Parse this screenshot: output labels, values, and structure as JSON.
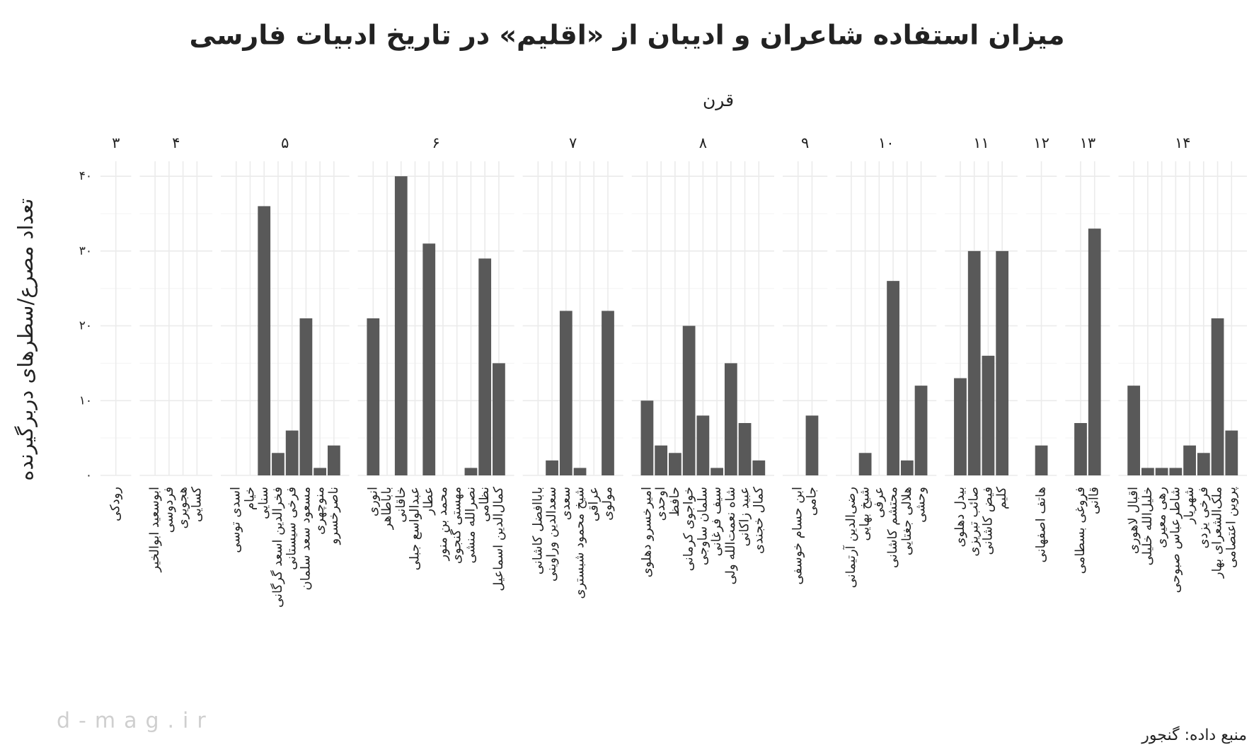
{
  "chart_data": {
    "type": "bar",
    "title": "میزان استفاده شاعران و ادیبان از «اقلیم» در تاریخ ادبیات فارسی",
    "x_label": "قرن",
    "y_label": "تعداد مصرع/سطرهای دربرگیرنده",
    "caption": "منبع داده: گنجور",
    "watermark": "d-mag.ir",
    "color": "#595959",
    "grid": true,
    "ylim": [
      0,
      42
    ],
    "yticks": [
      {
        "value": 0,
        "label": "۰"
      },
      {
        "value": 10,
        "label": "۱۰"
      },
      {
        "value": 20,
        "label": "۲۰"
      },
      {
        "value": 30,
        "label": "۳۰"
      },
      {
        "value": 40,
        "label": "۴۰"
      }
    ],
    "facets": [
      {
        "label": "۳",
        "categories": [
          "رودکی"
        ],
        "values": [
          0
        ]
      },
      {
        "label": "۴",
        "categories": [
          "ابوسعید ابوالخیر",
          "فردوسی",
          "هجویری",
          "کسایی"
        ],
        "values": [
          0,
          0,
          0,
          0
        ]
      },
      {
        "label": "۵",
        "categories": [
          "اسدی توسی",
          "خیام",
          "سنایی",
          "فخرالدین اسعد گرگانی",
          "فرخی سیستانی",
          "مسعود سعد سلمان",
          "منوچهری",
          "ناصرخسرو"
        ],
        "values": [
          0,
          0,
          36,
          3,
          6,
          21,
          1,
          4
        ]
      },
      {
        "label": "۶",
        "categories": [
          "انوری",
          "باباطاهر",
          "خاقانی",
          "عبدالواسع جبلی",
          "عطار",
          "محمد بن منور",
          "مهستی گنجوی",
          "نصرالله منشی",
          "نظامی",
          "کمال‌الدین اسماعیل"
        ],
        "values": [
          21,
          0,
          40,
          0,
          31,
          0,
          0,
          1,
          29,
          15
        ]
      },
      {
        "label": "۷",
        "categories": [
          "باباافضل کاشانی",
          "سعدالدین وراوینی",
          "سعدی",
          "شیخ محمود شبستری",
          "عراقی",
          "مولوی"
        ],
        "values": [
          0,
          2,
          22,
          1,
          0,
          22
        ]
      },
      {
        "label": "۸",
        "categories": [
          "امیرخسرو دهلوی",
          "اوحدی",
          "حافظ",
          "خواجوی کرمانی",
          "سلمان ساوجی",
          "سیف فرغانی",
          "شاه نعمت‌الله ولی",
          "عبید زاکانی",
          "کمال خجندی"
        ],
        "values": [
          10,
          4,
          3,
          20,
          8,
          1,
          15,
          7,
          2
        ]
      },
      {
        "label": "۹",
        "categories": [
          "ابن حسام خوسفی",
          "جامی"
        ],
        "values": [
          0,
          8
        ]
      },
      {
        "label": "۱۰",
        "categories": [
          "رضی‌الدین آرتیمانی",
          "شیخ بهایی",
          "عرفی",
          "محتشم کاشانی",
          "هلالی جغتایی",
          "وحشی"
        ],
        "values": [
          0,
          3,
          0,
          26,
          2,
          12
        ]
      },
      {
        "label": "۱۱",
        "categories": [
          "بیدل دهلوی",
          "صائب تبریزی",
          "فیض کاشانی",
          "کلیم"
        ],
        "values": [
          13,
          30,
          16,
          30
        ]
      },
      {
        "label": "۱۲",
        "categories": [
          "هاتف اصفهانی"
        ],
        "values": [
          4
        ]
      },
      {
        "label": "۱۳",
        "categories": [
          "فروغی بسطامی",
          "قاآنی"
        ],
        "values": [
          7,
          33
        ]
      },
      {
        "label": "۱۴",
        "categories": [
          "اقبال لاهوری",
          "خلیل‌الله خلیلی",
          "رهی معیری",
          "شاطرعباس صبوحی",
          "شهریار",
          "فرخی یزدی",
          "ملک‌الشعرای بهار",
          "پروین اعتصامی"
        ],
        "values": [
          12,
          1,
          1,
          1,
          4,
          3,
          21,
          6
        ]
      }
    ]
  }
}
